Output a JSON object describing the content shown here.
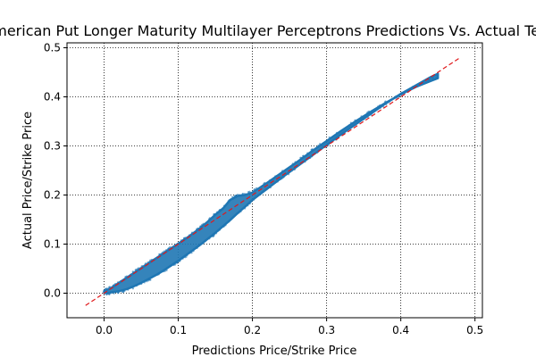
{
  "chart_data": {
    "type": "scatter",
    "title": "American Put Longer Maturity Multilayer Perceptrons Predictions Vs. Actual Test",
    "xlabel": "Predictions Price/Strike Price",
    "ylabel": "Actual Price/Strike Price",
    "xlim": [
      -0.05,
      0.51
    ],
    "ylim": [
      -0.05,
      0.51
    ],
    "xticks": [
      0.0,
      0.1,
      0.2,
      0.3,
      0.4,
      0.5
    ],
    "yticks": [
      0.0,
      0.1,
      0.2,
      0.3,
      0.4,
      0.5
    ],
    "xtick_labels": [
      "0.0",
      "0.1",
      "0.2",
      "0.3",
      "0.4",
      "0.5"
    ],
    "ytick_labels": [
      "0.0",
      "0.1",
      "0.2",
      "0.3",
      "0.4",
      "0.5"
    ],
    "grid": true,
    "grid_style": "dotted",
    "legend": false,
    "colors": {
      "points": "#1f77b4",
      "reference_line": "#e0191b",
      "grid": "#000000"
    },
    "reference_line": {
      "name": "y = x",
      "x": [
        -0.025,
        0.48
      ],
      "y": [
        -0.025,
        0.48
      ],
      "style": "dashed"
    },
    "series": [
      {
        "x": [
          0.0,
          0.005,
          0.01,
          0.02,
          0.03,
          0.04,
          0.05,
          0.06,
          0.07,
          0.08,
          0.09,
          0.1,
          0.11,
          0.12,
          0.13,
          0.14,
          0.15,
          0.16,
          0.17,
          0.18,
          0.19,
          0.2,
          0.22,
          0.24,
          0.26,
          0.28,
          0.3,
          0.32,
          0.34,
          0.36,
          0.38,
          0.4,
          0.42,
          0.44,
          0.45
        ],
        "y_lower": [
          0.0,
          0.001,
          0.002,
          0.004,
          0.008,
          0.014,
          0.021,
          0.029,
          0.037,
          0.046,
          0.056,
          0.066,
          0.077,
          0.088,
          0.099,
          0.111,
          0.123,
          0.136,
          0.149,
          0.163,
          0.176,
          0.19,
          0.213,
          0.236,
          0.258,
          0.28,
          0.302,
          0.324,
          0.345,
          0.366,
          0.387,
          0.406,
          0.423,
          0.44,
          0.447
        ],
        "y_upper": [
          0.004,
          0.007,
          0.011,
          0.021,
          0.031,
          0.041,
          0.051,
          0.061,
          0.071,
          0.081,
          0.091,
          0.101,
          0.111,
          0.122,
          0.133,
          0.146,
          0.16,
          0.172,
          0.19,
          0.198,
          0.2,
          0.205,
          0.225,
          0.246,
          0.267,
          0.289,
          0.31,
          0.331,
          0.351,
          0.37,
          0.388,
          0.405,
          0.42,
          0.432,
          0.438
        ]
      }
    ]
  }
}
